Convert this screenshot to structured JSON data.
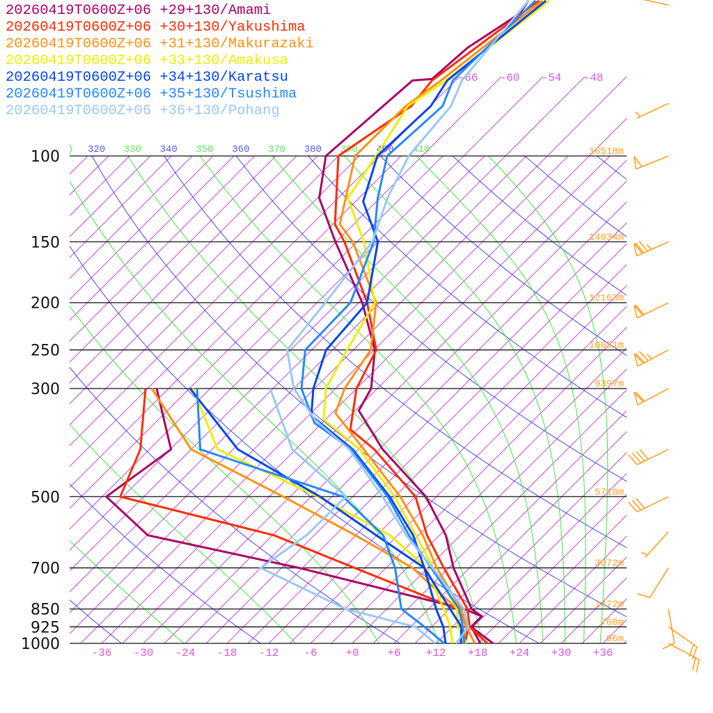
{
  "chart_data": {
    "type": "line",
    "title": "",
    "xlabel": "",
    "ylabel": "",
    "diagram": "skew-T log-p",
    "x_axis_unit": "degC",
    "y_axis_unit": "hPa",
    "ylim": [
      1000,
      48
    ],
    "x_ticks": [
      "-36",
      "-30",
      "-24",
      "-18",
      "-12",
      "-6",
      "+0",
      "+6",
      "+12",
      "+18",
      "+24",
      "+30",
      "+36"
    ],
    "x_tick_values": [
      -36,
      -30,
      -24,
      -18,
      -12,
      -6,
      0,
      6,
      12,
      18,
      24,
      30,
      36
    ],
    "pressure_levels": [
      {
        "p": 100,
        "label": "100",
        "height": "16518m"
      },
      {
        "p": 150,
        "label": "150",
        "height": "14034m"
      },
      {
        "p": 200,
        "label": "200",
        "height": "12163m"
      },
      {
        "p": 250,
        "label": "250",
        "height": "10651m"
      },
      {
        "p": 300,
        "label": "300",
        "height": "9397m"
      },
      {
        "p": 500,
        "label": "500",
        "height": "5710m"
      },
      {
        "p": 700,
        "label": "700",
        "height": "3072m"
      },
      {
        "p": 850,
        "label": "850",
        "height": "1472m"
      },
      {
        "p": 925,
        "label": "925",
        "height": "760m"
      },
      {
        "p": 1000,
        "label": "1000",
        "height": "96m"
      }
    ],
    "theta_labels": [
      {
        "theta": 320,
        "label": "320",
        "kind": "dry"
      },
      {
        "theta": 330,
        "label": "330",
        "kind": "moist"
      },
      {
        "theta": 340,
        "label": "340",
        "kind": "dry"
      },
      {
        "theta": 350,
        "label": "350",
        "kind": "moist"
      },
      {
        "theta": 360,
        "label": "360",
        "kind": "dry"
      },
      {
        "theta": 370,
        "label": "370",
        "kind": "moist"
      },
      {
        "theta": 380,
        "label": "380",
        "kind": "dry"
      },
      {
        "theta": 390,
        "label": "390",
        "kind": "moist"
      },
      {
        "theta": 400,
        "label": "400",
        "kind": "dry"
      },
      {
        "theta": 410,
        "label": "410",
        "kind": "moist"
      }
    ],
    "isotherm_labels": [
      {
        "t": -66,
        "label": "-66"
      },
      {
        "t": -60,
        "label": "-60"
      },
      {
        "t": -54,
        "label": "-54"
      },
      {
        "t": -48,
        "label": "-48"
      }
    ],
    "colors": {
      "isotherm": "#cc44dd",
      "dry_adiabat": "#4444ee",
      "moist_adiabat": "#33ee33",
      "isobar": "#111111",
      "wind": "#ffa020",
      "height": "#ffa020"
    },
    "series": [
      {
        "name": "20260419T0600Z+06 +29+130/Amami",
        "color": "#aa0066",
        "temperature": [
          [
            1000,
            20.2
          ],
          [
            925,
            14.7
          ],
          [
            880,
            14.7
          ],
          [
            850,
            12.2
          ],
          [
            700,
            3.7
          ],
          [
            600,
            -2.1
          ],
          [
            500,
            -10.5
          ],
          [
            400,
            -23.5
          ],
          [
            333,
            -32.5
          ],
          [
            300,
            -33.9
          ],
          [
            250,
            -38.9
          ],
          [
            200,
            -47.5
          ],
          [
            150,
            -60.1
          ],
          [
            122,
            -68.7
          ],
          [
            100,
            -73.8
          ],
          [
            70,
            -72.2
          ],
          [
            69.5,
            -69.6
          ],
          [
            60,
            -69.0
          ],
          [
            51,
            -66.4
          ],
          [
            48,
            -67.0
          ]
        ],
        "dewpoint": [
          [
            1000,
            18.4
          ],
          [
            925,
            14.7
          ],
          [
            880,
            14.7
          ],
          [
            850,
            11.1
          ],
          [
            700,
            -18.5
          ],
          [
            600,
            -44.9
          ],
          [
            500,
            -56.4
          ],
          [
            400,
            -53.9
          ],
          [
            300,
            -64.7
          ]
        ]
      },
      {
        "name": "20260419T0600Z+06 +30+130/Yakushima",
        "color": "#ff2a00",
        "temperature": [
          [
            1000,
            19.4
          ],
          [
            925,
            14.5
          ],
          [
            850,
            11.6
          ],
          [
            700,
            2.3
          ],
          [
            600,
            -4.8
          ],
          [
            500,
            -12.0
          ],
          [
            400,
            -24.7
          ],
          [
            364,
            -31.0
          ],
          [
            300,
            -36.0
          ],
          [
            250,
            -38.7
          ],
          [
            200,
            -46.8
          ],
          [
            150,
            -58.8
          ],
          [
            138,
            -62.7
          ],
          [
            100,
            -72.0
          ],
          [
            79,
            -68.7
          ],
          [
            70,
            -69.4
          ],
          [
            48,
            -65.5
          ]
        ],
        "dewpoint": [
          [
            1000,
            16.2
          ],
          [
            925,
            14.3
          ],
          [
            850,
            10.1
          ],
          [
            700,
            -10.5
          ],
          [
            600,
            -26.8
          ],
          [
            500,
            -54.4
          ],
          [
            400,
            -58.3
          ],
          [
            300,
            -66.3
          ]
        ]
      },
      {
        "name": "20260419T0600Z+06 +31+130/Makurazaki",
        "color": "#ff9010",
        "temperature": [
          [
            1000,
            17.6
          ],
          [
            925,
            14.0
          ],
          [
            850,
            10.7
          ],
          [
            700,
            1.3
          ],
          [
            600,
            -5.4
          ],
          [
            500,
            -14.2
          ],
          [
            400,
            -26.2
          ],
          [
            337,
            -35.5
          ],
          [
            300,
            -37.7
          ],
          [
            250,
            -39.5
          ],
          [
            200,
            -45.5
          ],
          [
            150,
            -57.6
          ],
          [
            138,
            -62.0
          ],
          [
            122,
            -64.9
          ],
          [
            100,
            -69.6
          ],
          [
            79,
            -69.5
          ],
          [
            70,
            -68.1
          ],
          [
            48,
            -65.0
          ]
        ],
        "dewpoint": [
          [
            1000,
            15.9
          ],
          [
            925,
            14.0
          ],
          [
            850,
            10.1
          ],
          [
            700,
            -2.2
          ],
          [
            600,
            -15.1
          ],
          [
            500,
            -31.0
          ],
          [
            400,
            -51.0
          ],
          [
            300,
            -65.4
          ]
        ]
      },
      {
        "name": "20260419T0600Z+06 +33+130/Amakusa",
        "color": "#eeee00",
        "temperature": [
          [
            1000,
            16.4
          ],
          [
            925,
            12.8
          ],
          [
            850,
            10.1
          ],
          [
            700,
            0.8
          ],
          [
            600,
            -6.4
          ],
          [
            500,
            -15.0
          ],
          [
            400,
            -26.8
          ],
          [
            347,
            -36.3
          ],
          [
            300,
            -40.4
          ],
          [
            250,
            -42.9
          ],
          [
            200,
            -45.7
          ],
          [
            150,
            -56.0
          ],
          [
            122,
            -64.6
          ],
          [
            100,
            -66.6
          ],
          [
            79,
            -69.2
          ],
          [
            70,
            -67.4
          ],
          [
            48,
            -64.0
          ]
        ],
        "dewpoint": [
          [
            1000,
            14.4
          ],
          [
            925,
            11.7
          ],
          [
            850,
            8.2
          ],
          [
            700,
            -0.2
          ],
          [
            600,
            -10.1
          ],
          [
            500,
            -26.0
          ],
          [
            400,
            -47.2
          ],
          [
            300,
            -59.5
          ]
        ]
      },
      {
        "name": "20260419T0600Z+06 +34+130/Karatsu",
        "color": "#0044ee",
        "temperature": [
          [
            1000,
            15.6
          ],
          [
            925,
            13.3
          ],
          [
            850,
            9.1
          ],
          [
            700,
            -0.5
          ],
          [
            600,
            -6.8
          ],
          [
            500,
            -15.7
          ],
          [
            400,
            -27.8
          ],
          [
            341,
            -38.6
          ],
          [
            300,
            -42.2
          ],
          [
            250,
            -45.9
          ],
          [
            200,
            -46.8
          ],
          [
            150,
            -54.0
          ],
          [
            124,
            -61.9
          ],
          [
            100,
            -66.4
          ],
          [
            79,
            -65.9
          ],
          [
            70,
            -67.2
          ],
          [
            48,
            -64.5
          ]
        ],
        "dewpoint": [
          [
            1000,
            13.4
          ],
          [
            925,
            10.7
          ],
          [
            850,
            7.1
          ],
          [
            700,
            -0.5
          ],
          [
            600,
            -12.1
          ],
          [
            500,
            -25.7
          ],
          [
            400,
            -44.3
          ],
          [
            300,
            -59.9
          ]
        ]
      },
      {
        "name": "20260419T0600Z+06 +35+130/Tsushima",
        "color": "#2288ff",
        "temperature": [
          [
            1000,
            16.1
          ],
          [
            925,
            13.5
          ],
          [
            850,
            10.4
          ],
          [
            700,
            0.5
          ],
          [
            600,
            -7.4
          ],
          [
            500,
            -16.0
          ],
          [
            400,
            -28.0
          ],
          [
            353,
            -37.1
          ],
          [
            300,
            -43.9
          ],
          [
            250,
            -48.9
          ],
          [
            200,
            -49.2
          ],
          [
            150,
            -54.6
          ],
          [
            122,
            -60.3
          ],
          [
            100,
            -65.0
          ],
          [
            79,
            -64.2
          ],
          [
            70,
            -66.4
          ],
          [
            48,
            -66.0
          ]
        ],
        "dewpoint": [
          [
            1000,
            13.2
          ],
          [
            925,
            8.0
          ],
          [
            850,
            2.1
          ],
          [
            700,
            -4.7
          ],
          [
            600,
            -11.1
          ],
          [
            500,
            -22.4
          ],
          [
            400,
            -49.7
          ],
          [
            300,
            -58.9
          ]
        ]
      },
      {
        "name": "20260419T0600Z+06 +36+130/Pohang",
        "color": "#99c8f8",
        "temperature": [
          [
            1000,
            14.9
          ],
          [
            925,
            14.3
          ],
          [
            850,
            11.1
          ],
          [
            700,
            0.7
          ],
          [
            600,
            -7.8
          ],
          [
            500,
            -16.7
          ],
          [
            400,
            -28.3
          ],
          [
            348,
            -37.4
          ],
          [
            300,
            -45.0
          ],
          [
            250,
            -51.5
          ],
          [
            200,
            -52.8
          ],
          [
            150,
            -54.8
          ],
          [
            122,
            -58.9
          ],
          [
            100,
            -61.9
          ],
          [
            79,
            -63.0
          ],
          [
            70,
            -65.1
          ],
          [
            48,
            -67.0
          ]
        ],
        "dewpoint": [
          [
            1000,
            11.9
          ],
          [
            925,
            6.7
          ],
          [
            850,
            -5.9
          ],
          [
            700,
            -24.0
          ],
          [
            600,
            -22.1
          ],
          [
            500,
            -22.0
          ],
          [
            400,
            -36.5
          ],
          [
            300,
            -48.4
          ]
        ]
      }
    ],
    "winds": [
      {
        "p": 49,
        "dir": 282,
        "kt": 10
      },
      {
        "p": 78,
        "dir": 245,
        "kt": 5
      },
      {
        "p": 100,
        "dir": 248,
        "kt": 50
      },
      {
        "p": 150,
        "dir": 246,
        "kt": 75
      },
      {
        "p": 200,
        "dir": 244,
        "kt": 60
      },
      {
        "p": 250,
        "dir": 242,
        "kt": 75
      },
      {
        "p": 300,
        "dir": 242,
        "kt": 60
      },
      {
        "p": 400,
        "dir": 244,
        "kt": 40
      },
      {
        "p": 500,
        "dir": 244,
        "kt": 30
      },
      {
        "p": 590,
        "dir": 222,
        "kt": 5
      },
      {
        "p": 700,
        "dir": 212,
        "kt": 10
      },
      {
        "p": 850,
        "dir": 170,
        "kt": 10
      },
      {
        "p": 925,
        "dir": 125,
        "kt": 20
      },
      {
        "p": 1000,
        "dir": 118,
        "kt": 20
      }
    ]
  }
}
